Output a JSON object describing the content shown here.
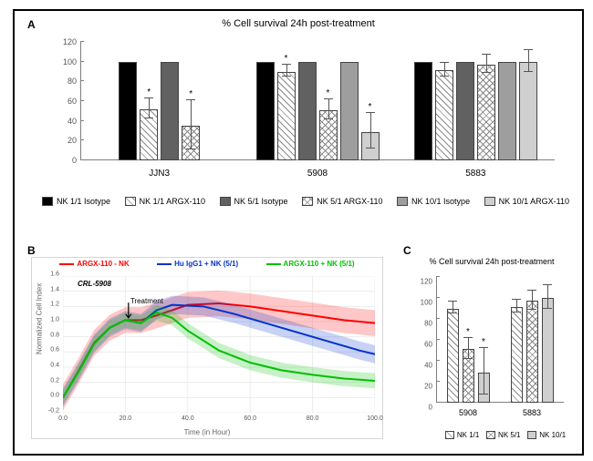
{
  "panelA": {
    "label": "A",
    "title": "% Cell survival 24h post-treatment",
    "ylim": [
      0,
      120
    ],
    "ytick_step": 20,
    "groups": [
      "JJN3",
      "5908",
      "5883"
    ],
    "series": [
      {
        "key": "nk11_iso",
        "label": "NK 1/1 Isotype",
        "fill": "fill-black"
      },
      {
        "key": "nk11_argx",
        "label": "NK 1/1 ARGX-110",
        "fill": "fill-diag1"
      },
      {
        "key": "nk51_iso",
        "label": "NK 5/1 Isotype",
        "fill": "fill-darkgrey"
      },
      {
        "key": "nk51_argx",
        "label": "NK 5/1 ARGX-110",
        "fill": "fill-check"
      },
      {
        "key": "nk101_iso",
        "label": "NK 10/1 Isotype",
        "fill": "fill-midgrey"
      },
      {
        "key": "nk101_argx",
        "label": "NK 10/1 ARGX-110",
        "fill": "fill-lightgrey"
      }
    ],
    "data": {
      "JJN3": {
        "nk11_iso": 100,
        "nk11_argx": 52,
        "nk51_iso": 100,
        "nk51_argx": 35,
        "nk101_iso": null,
        "nk101_argx": null
      },
      "5908": {
        "nk11_iso": 100,
        "nk11_argx": 90,
        "nk51_iso": 100,
        "nk51_argx": 51,
        "nk101_iso": 100,
        "nk101_argx": 29
      },
      "5883": {
        "nk11_iso": 100,
        "nk11_argx": 91,
        "nk51_iso": 100,
        "nk51_argx": 97,
        "nk101_iso": 100,
        "nk101_argx": 100
      }
    },
    "err": {
      "JJN3": {
        "nk11_argx": 10,
        "nk51_argx": 25
      },
      "5908": {
        "nk11_argx": 6,
        "nk51_argx": 10,
        "nk101_argx": 18
      },
      "5883": {
        "nk11_argx": 7,
        "nk51_argx": 9,
        "nk101_argx": 11
      }
    },
    "sig": {
      "JJN3": [
        "nk11_argx",
        "nk51_argx"
      ],
      "5908": [
        "nk11_argx",
        "nk51_argx",
        "nk101_argx"
      ],
      "5883": []
    }
  },
  "panelB": {
    "label": "B",
    "cell_line": "CRL-5908",
    "treatment_label": "Treatment",
    "xlabel": "Time (in Hour)",
    "ylabel": "Normalized Cell Index",
    "legend": [
      {
        "label": "ARGX-110 - NK",
        "color": "#ff0000"
      },
      {
        "label": "Hu IgG1 + NK (5/1)",
        "color": "#0033cc"
      },
      {
        "label": "ARGX-110 + NK (5/1)",
        "color": "#00c000"
      }
    ],
    "xlim": [
      0,
      100
    ],
    "xtick_step": 20,
    "ylim": [
      -0.2,
      1.6
    ],
    "ytick_step": 0.2,
    "treatment_x": 21,
    "lines": {
      "red": [
        [
          0,
          0.0
        ],
        [
          5,
          0.35
        ],
        [
          10,
          0.72
        ],
        [
          15,
          0.92
        ],
        [
          20,
          1.02
        ],
        [
          25,
          1.02
        ],
        [
          30,
          1.08
        ],
        [
          40,
          1.22
        ],
        [
          50,
          1.24
        ],
        [
          60,
          1.2
        ],
        [
          70,
          1.14
        ],
        [
          80,
          1.08
        ],
        [
          90,
          1.02
        ],
        [
          100,
          0.98
        ]
      ],
      "blue": [
        [
          0,
          0.0
        ],
        [
          5,
          0.34
        ],
        [
          10,
          0.71
        ],
        [
          15,
          0.92
        ],
        [
          20,
          1.02
        ],
        [
          25,
          0.98
        ],
        [
          30,
          1.15
        ],
        [
          35,
          1.22
        ],
        [
          45,
          1.2
        ],
        [
          55,
          1.1
        ],
        [
          65,
          0.98
        ],
        [
          75,
          0.86
        ],
        [
          85,
          0.74
        ],
        [
          95,
          0.62
        ],
        [
          100,
          0.57
        ]
      ],
      "green": [
        [
          0,
          0.0
        ],
        [
          5,
          0.34
        ],
        [
          10,
          0.71
        ],
        [
          15,
          0.92
        ],
        [
          20,
          1.02
        ],
        [
          25,
          0.98
        ],
        [
          30,
          1.12
        ],
        [
          35,
          1.05
        ],
        [
          40,
          0.88
        ],
        [
          50,
          0.62
        ],
        [
          60,
          0.46
        ],
        [
          70,
          0.36
        ],
        [
          80,
          0.3
        ],
        [
          90,
          0.25
        ],
        [
          100,
          0.22
        ]
      ]
    },
    "band_half": {
      "red": 0.17,
      "blue": 0.12,
      "green": 0.1
    }
  },
  "panelC": {
    "label": "C",
    "title": "% Cell survival 24h post-treatment",
    "ylim": [
      0,
      120
    ],
    "ytick_step": 20,
    "groups": [
      "5908",
      "5883"
    ],
    "series": [
      {
        "key": "nk11",
        "label": "NK 1/1",
        "fill": "fill-diag1"
      },
      {
        "key": "nk51",
        "label": "NK 5/1",
        "fill": "fill-check"
      },
      {
        "key": "nk101",
        "label": "NK 10/1",
        "fill": "fill-lightgrey"
      }
    ],
    "data": {
      "5908": {
        "nk11": 90,
        "nk51": 51,
        "nk101": 29
      },
      "5883": {
        "nk11": 91,
        "nk51": 97,
        "nk101": 100
      }
    },
    "err": {
      "5908": {
        "nk11": 6,
        "nk51": 10,
        "nk101": 22
      },
      "5883": {
        "nk11": 6,
        "nk51": 9,
        "nk101": 11
      }
    },
    "sig": {
      "5908": [
        "nk51",
        "nk101"
      ],
      "5883": []
    }
  }
}
